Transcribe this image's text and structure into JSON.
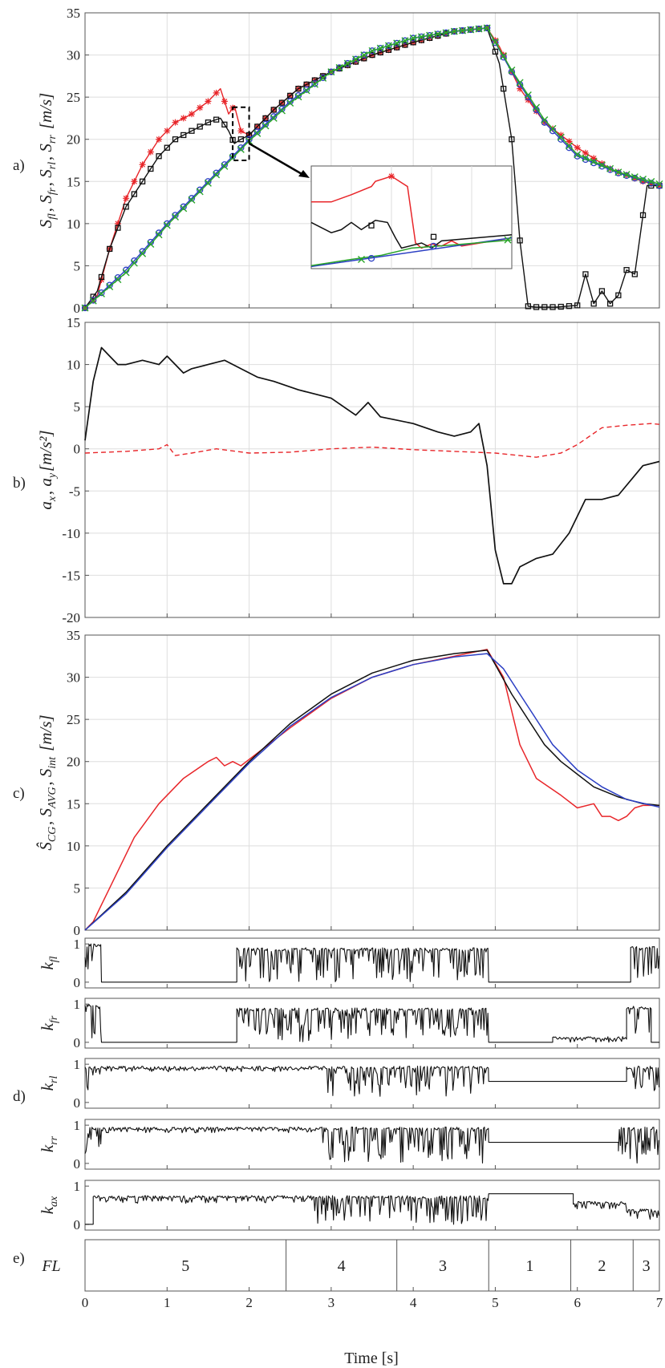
{
  "colors": {
    "black": "#111111",
    "red": "#e8262a",
    "blue": "#2b3fc4",
    "green": "#2aa52a",
    "grid": "#dedede",
    "axis": "#555555"
  },
  "xaxis": {
    "label": "Time [s]",
    "ticks": [
      0,
      1,
      2,
      3,
      4,
      5,
      6,
      7
    ],
    "range": [
      0,
      7
    ]
  },
  "chart_data": [
    {
      "panel": "a)",
      "type": "line",
      "ylabel": "S_fl, S_fr, S_rl, S_rr [m/s]",
      "ylim": [
        0,
        35
      ],
      "yticks": [
        0,
        5,
        10,
        15,
        20,
        25,
        30,
        35
      ],
      "grid": true,
      "series": [
        {
          "color": "red",
          "marker": "*",
          "x": [
            0,
            0.15,
            0.3,
            0.5,
            0.7,
            0.9,
            1.1,
            1.3,
            1.5,
            1.65,
            1.75,
            1.82,
            1.9,
            2.0,
            2.3,
            2.6,
            3.0,
            3.5,
            4.0,
            4.5,
            4.9,
            5.05,
            5.3,
            5.6,
            6.0,
            6.4,
            6.8,
            7.0
          ],
          "y": [
            0,
            1.5,
            7,
            13,
            17,
            20,
            22,
            23,
            24.5,
            26,
            23,
            24,
            21,
            20.5,
            23.5,
            26,
            28,
            30,
            31.5,
            32.8,
            33.2,
            31,
            26,
            22,
            19,
            16.5,
            15,
            14.5
          ]
        },
        {
          "color": "black",
          "marker": "square",
          "x": [
            0,
            0.15,
            0.3,
            0.5,
            0.7,
            0.9,
            1.1,
            1.3,
            1.5,
            1.65,
            1.75,
            1.82,
            1.9,
            2.0,
            2.3,
            2.6,
            3.0,
            3.5,
            4.0,
            4.5,
            4.9,
            5.05,
            5.2,
            5.3,
            5.4,
            5.5,
            5.6,
            5.75,
            6.0,
            6.1,
            6.2,
            6.3,
            6.4,
            6.5,
            6.6,
            6.7,
            6.85,
            7.0
          ],
          "y": [
            0,
            2,
            7,
            12,
            15,
            18,
            20,
            21,
            22,
            22.5,
            21,
            19.5,
            20,
            20.5,
            23.5,
            26,
            28,
            30,
            31.5,
            32.8,
            33.2,
            29,
            20,
            8,
            0.2,
            0.1,
            0.1,
            0.1,
            0.3,
            4,
            0.5,
            2,
            0.5,
            1.5,
            4.5,
            4,
            14.5,
            14.5
          ]
        },
        {
          "color": "blue",
          "marker": "circle",
          "x": [
            0,
            0.5,
            1.0,
            1.5,
            2.0,
            2.5,
            3.0,
            3.5,
            4.0,
            4.5,
            4.9,
            5.2,
            5.6,
            6.0,
            6.5,
            7.0
          ],
          "y": [
            0,
            4.5,
            10,
            15,
            20,
            24.5,
            28,
            30.5,
            32,
            32.8,
            33.2,
            28,
            22,
            18,
            16,
            14.5
          ]
        },
        {
          "color": "green",
          "marker": "x",
          "x": [
            0,
            0.5,
            1.0,
            1.5,
            2.0,
            2.5,
            3.0,
            3.5,
            4.0,
            4.5,
            4.9,
            5.2,
            5.6,
            6.0,
            6.5,
            7.0
          ],
          "y": [
            0,
            4.2,
            9.8,
            14.8,
            19.8,
            24.3,
            28,
            30.5,
            32,
            32.8,
            33.2,
            28.2,
            22.3,
            18.2,
            16.1,
            14.7
          ]
        }
      ],
      "annotations": [
        "zoom-box",
        "zoom-arrow",
        "inset"
      ]
    },
    {
      "panel": "b)",
      "type": "line",
      "ylabel": "a_x, a_y [m/s^2]",
      "ylim": [
        -20,
        15
      ],
      "yticks": [
        -20,
        -15,
        -10,
        -5,
        0,
        5,
        10,
        15
      ],
      "grid": true,
      "series": [
        {
          "color": "black",
          "style": "solid",
          "x": [
            0,
            0.1,
            0.2,
            0.3,
            0.4,
            0.5,
            0.7,
            0.9,
            1.0,
            1.1,
            1.2,
            1.3,
            1.5,
            1.7,
            1.9,
            2.1,
            2.3,
            2.6,
            3.0,
            3.3,
            3.45,
            3.6,
            3.75,
            4.0,
            4.3,
            4.5,
            4.7,
            4.8,
            4.9,
            5.0,
            5.1,
            5.2,
            5.3,
            5.5,
            5.7,
            5.9,
            6.1,
            6.3,
            6.5,
            6.8,
            7.0
          ],
          "y": [
            1,
            8,
            12,
            11,
            10,
            10,
            10.5,
            10,
            11,
            10,
            9,
            9.5,
            10,
            10.5,
            9.5,
            8.5,
            8,
            7,
            6,
            4,
            5.5,
            3.8,
            3.5,
            3,
            2,
            1.5,
            2,
            3,
            -2,
            -12,
            -16,
            -16,
            -14,
            -13,
            -12.5,
            -10,
            -6,
            -6,
            -5.5,
            -2,
            -1.5
          ]
        },
        {
          "color": "red",
          "style": "dashed",
          "x": [
            0,
            0.5,
            0.9,
            1.0,
            1.1,
            1.3,
            1.6,
            2.0,
            2.5,
            3.0,
            3.5,
            4.0,
            4.5,
            5.0,
            5.5,
            5.8,
            6.0,
            6.3,
            6.6,
            6.9,
            7.0
          ],
          "y": [
            -0.5,
            -0.3,
            0,
            0.5,
            -0.8,
            -0.5,
            0,
            -0.5,
            -0.4,
            0,
            0.2,
            -0.1,
            -0.3,
            -0.5,
            -1,
            -0.5,
            0.5,
            2.5,
            2.8,
            3,
            2.9
          ]
        }
      ]
    },
    {
      "panel": "c)",
      "type": "line",
      "ylabel": "Ŝ_CG, S_AVG, S_int [m/s]",
      "ylim": [
        0,
        35
      ],
      "yticks": [
        0,
        5,
        10,
        15,
        20,
        25,
        30,
        35
      ],
      "grid": true,
      "series": [
        {
          "color": "red",
          "x": [
            0,
            0.1,
            0.3,
            0.6,
            0.9,
            1.2,
            1.5,
            1.6,
            1.7,
            1.8,
            1.9,
            2.1,
            2.5,
            3.0,
            3.5,
            4.0,
            4.5,
            4.9,
            5.1,
            5.3,
            5.5,
            5.8,
            6.0,
            6.2,
            6.3,
            6.4,
            6.5,
            6.6,
            6.7,
            6.8,
            7.0
          ],
          "y": [
            0,
            1,
            5,
            11,
            15,
            18,
            20,
            20.5,
            19.5,
            20,
            19.5,
            21,
            24,
            27.5,
            30,
            31.5,
            32.5,
            33.3,
            30,
            22,
            18,
            16,
            14.5,
            15,
            13.5,
            13.5,
            13,
            13.5,
            14.5,
            14.8,
            14.8
          ]
        },
        {
          "color": "black",
          "x": [
            0,
            0.5,
            1.0,
            1.5,
            2.0,
            2.5,
            3.0,
            3.5,
            4.0,
            4.5,
            4.9,
            5.0,
            5.2,
            5.4,
            5.6,
            5.8,
            6.0,
            6.2,
            6.5,
            6.8,
            7.0
          ],
          "y": [
            0,
            4.5,
            10,
            15,
            20,
            24.5,
            28,
            30.5,
            32,
            32.8,
            33.2,
            31.5,
            28,
            25,
            22,
            20,
            18.5,
            17,
            15.8,
            15,
            14.8
          ]
        },
        {
          "color": "blue",
          "x": [
            0,
            0.5,
            1.0,
            1.5,
            2.0,
            2.5,
            3.0,
            3.5,
            4.0,
            4.5,
            4.9,
            5.1,
            5.3,
            5.5,
            5.7,
            6.0,
            6.3,
            6.6,
            7.0
          ],
          "y": [
            0,
            4.3,
            9.8,
            14.8,
            19.8,
            24.2,
            27.6,
            30,
            31.5,
            32.4,
            32.8,
            31,
            28,
            25,
            22,
            19,
            17,
            15.5,
            14.6
          ]
        }
      ]
    },
    {
      "panel": "d)",
      "type": "line",
      "subplots": [
        {
          "ylabel": "k_fl",
          "yticks": [
            0,
            1
          ],
          "ylim": [
            -0.15,
            1.15
          ],
          "segments": [
            {
              "x": [
                0,
                0.2
              ],
              "noise": [
                0.1,
                1
              ]
            },
            {
              "x": [
                0.2,
                1.85
              ],
              "level": 0
            },
            {
              "x": [
                1.85,
                4.92
              ],
              "noise": [
                0,
                0.9
              ]
            },
            {
              "x": [
                4.92,
                6.65
              ],
              "level": 0
            },
            {
              "x": [
                6.65,
                7.0
              ],
              "noise": [
                0.1,
                0.95
              ]
            }
          ]
        },
        {
          "ylabel": "k_fr",
          "yticks": [
            0,
            1
          ],
          "ylim": [
            -0.15,
            1.15
          ],
          "segments": [
            {
              "x": [
                0,
                0.2
              ],
              "noise": [
                0.1,
                1
              ]
            },
            {
              "x": [
                0.2,
                1.85
              ],
              "level": 0
            },
            {
              "x": [
                1.85,
                4.92
              ],
              "noise": [
                0,
                0.9
              ]
            },
            {
              "x": [
                4.92,
                5.7
              ],
              "level": 0
            },
            {
              "x": [
                5.7,
                6.6
              ],
              "noise": [
                0,
                0.15
              ]
            },
            {
              "x": [
                6.6,
                6.9
              ],
              "noise": [
                0.1,
                0.95
              ]
            },
            {
              "x": [
                6.9,
                7.0
              ],
              "level": 0
            }
          ]
        },
        {
          "ylabel": "k_rl",
          "yticks": [
            0,
            1
          ],
          "ylim": [
            -0.15,
            1.15
          ],
          "segments": [
            {
              "x": [
                0,
                0.2
              ],
              "noise": [
                0.2,
                0.95
              ]
            },
            {
              "x": [
                0.2,
                2.9
              ],
              "noise": [
                0.8,
                0.95
              ]
            },
            {
              "x": [
                2.9,
                4.92
              ],
              "noise": [
                0.1,
                0.95
              ]
            },
            {
              "x": [
                4.92,
                6.6
              ],
              "level": 0.55
            },
            {
              "x": [
                6.6,
                7.0
              ],
              "noise": [
                0.3,
                0.95
              ]
            }
          ]
        },
        {
          "ylabel": "k_rr",
          "yticks": [
            0,
            1
          ],
          "ylim": [
            -0.15,
            1.15
          ],
          "segments": [
            {
              "x": [
                0,
                0.2
              ],
              "noise": [
                0.1,
                0.95
              ]
            },
            {
              "x": [
                0.2,
                2.9
              ],
              "noise": [
                0.8,
                0.95
              ]
            },
            {
              "x": [
                2.9,
                4.92
              ],
              "noise": [
                0,
                0.95
              ]
            },
            {
              "x": [
                4.92,
                6.5
              ],
              "level": 0.55
            },
            {
              "x": [
                6.5,
                7.0
              ],
              "noise": [
                0,
                0.95
              ]
            }
          ]
        },
        {
          "ylabel": "k_ax",
          "yticks": [
            0,
            1
          ],
          "ylim": [
            -0.15,
            1.15
          ],
          "segments": [
            {
              "x": [
                0,
                0.1
              ],
              "level": 0
            },
            {
              "x": [
                0.1,
                2.8
              ],
              "noise": [
                0.55,
                0.75
              ]
            },
            {
              "x": [
                2.8,
                4.92
              ],
              "noise": [
                0,
                0.75
              ]
            },
            {
              "x": [
                4.92,
                5.95
              ],
              "level": 0.8
            },
            {
              "x": [
                5.95,
                6.6
              ],
              "noise": [
                0.4,
                0.6
              ]
            },
            {
              "x": [
                6.6,
                7.0
              ],
              "noise": [
                0.1,
                0.4
              ]
            }
          ]
        }
      ]
    },
    {
      "panel": "e)",
      "type": "table",
      "ylabel": "FL",
      "cells": [
        {
          "x0": 0,
          "x1": 2.45,
          "label": "5"
        },
        {
          "x0": 2.45,
          "x1": 3.8,
          "label": "4"
        },
        {
          "x0": 3.8,
          "x1": 4.92,
          "label": "3"
        },
        {
          "x0": 4.92,
          "x1": 5.92,
          "label": "1"
        },
        {
          "x0": 5.92,
          "x1": 6.68,
          "label": "2"
        },
        {
          "x0": 6.68,
          "x1": 7.0,
          "label": "3"
        }
      ]
    }
  ]
}
